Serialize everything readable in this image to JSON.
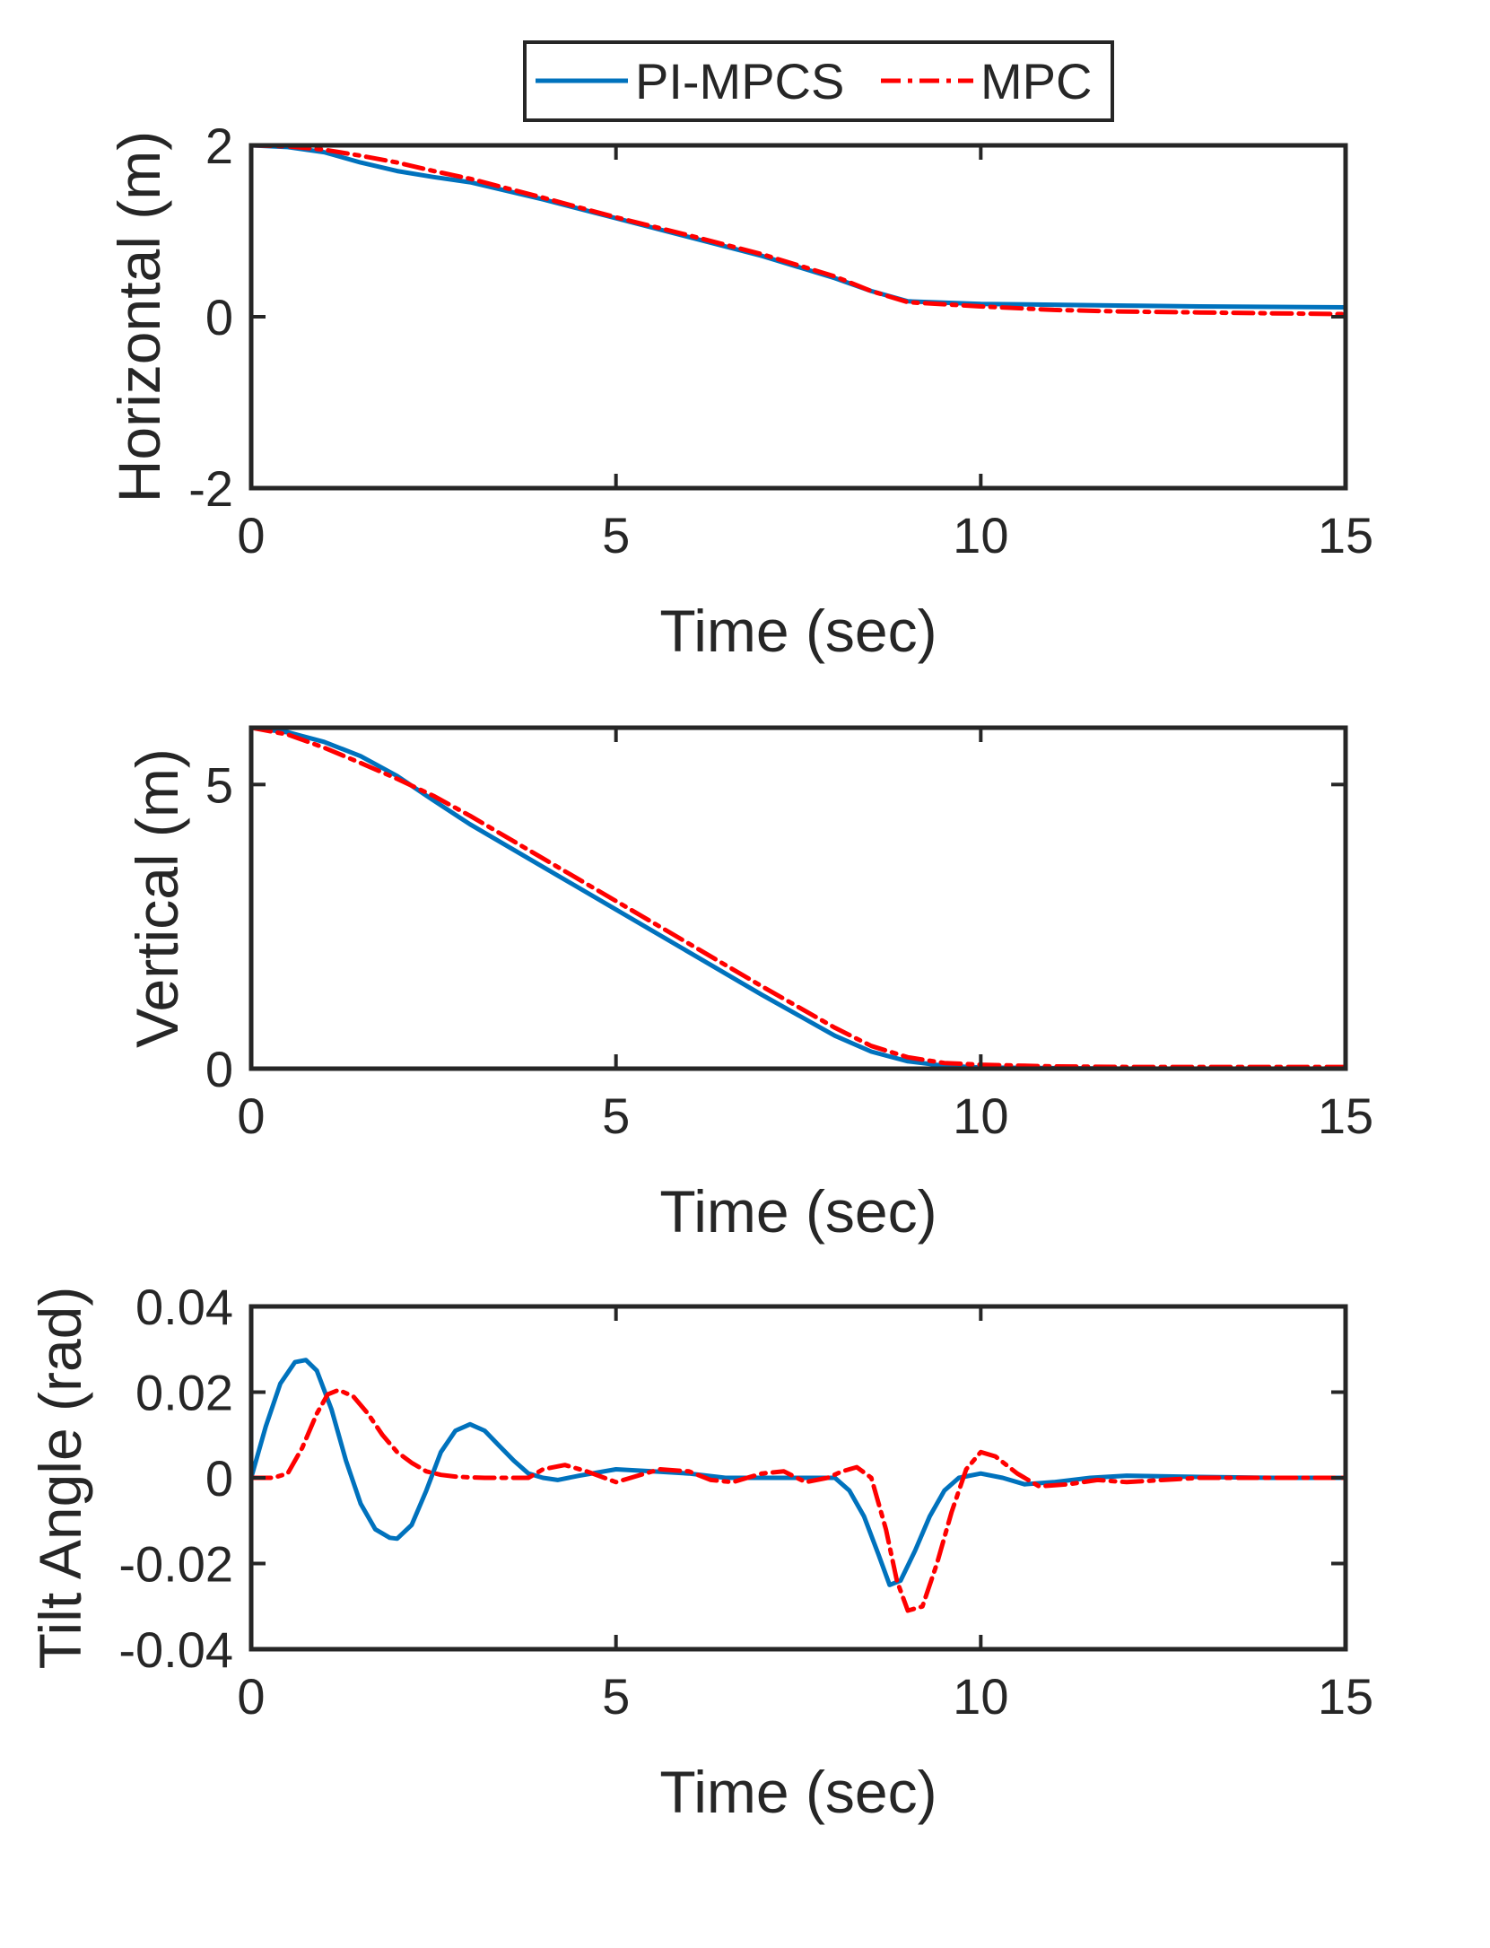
{
  "legend": {
    "entries": [
      {
        "label": "PI-MPCS",
        "color": "#0072BD",
        "style": "solid"
      },
      {
        "label": "MPC",
        "color": "#FF0000",
        "style": "dash-dot"
      }
    ]
  },
  "chart_data": [
    {
      "type": "line",
      "xlabel": "Time (sec)",
      "ylabel": "Horizontal (m)",
      "xlim": [
        0,
        15
      ],
      "ylim": [
        -2,
        2
      ],
      "xticks": [
        0,
        5,
        10,
        15
      ],
      "yticks": [
        -2,
        0,
        2
      ],
      "xtick_labels": [
        "0",
        "5",
        "10",
        "15"
      ],
      "ytick_labels": [
        "-2",
        "0",
        "2"
      ],
      "series": [
        {
          "name": "PI-MPCS",
          "color": "#0072BD",
          "style": "solid",
          "x": [
            0,
            0.5,
            1,
            1.5,
            2,
            2.5,
            3,
            4,
            5,
            6,
            7,
            8,
            8.5,
            9,
            10,
            11,
            12,
            13,
            14,
            15
          ],
          "y": [
            2.0,
            1.98,
            1.92,
            1.8,
            1.7,
            1.63,
            1.57,
            1.37,
            1.15,
            0.93,
            0.71,
            0.45,
            0.3,
            0.18,
            0.15,
            0.14,
            0.13,
            0.12,
            0.115,
            0.11
          ]
        },
        {
          "name": "MPC",
          "color": "#FF0000",
          "style": "dash-dot",
          "x": [
            0,
            0.5,
            1,
            1.5,
            2,
            2.5,
            3,
            4,
            5,
            6,
            7,
            8,
            8.5,
            9,
            10,
            11,
            12,
            13,
            14,
            15
          ],
          "y": [
            2.0,
            1.99,
            1.95,
            1.88,
            1.8,
            1.7,
            1.61,
            1.39,
            1.16,
            0.95,
            0.73,
            0.47,
            0.3,
            0.17,
            0.12,
            0.08,
            0.06,
            0.05,
            0.04,
            0.03
          ]
        }
      ]
    },
    {
      "type": "line",
      "xlabel": "Time (sec)",
      "ylabel": "Vertical (m)",
      "xlim": [
        0,
        15
      ],
      "ylim": [
        0,
        6
      ],
      "xticks": [
        0,
        5,
        10,
        15
      ],
      "yticks": [
        0,
        5
      ],
      "xtick_labels": [
        "0",
        "5",
        "10",
        "15"
      ],
      "ytick_labels": [
        "0",
        "5"
      ],
      "series": [
        {
          "name": "PI-MPCS",
          "color": "#0072BD",
          "style": "solid",
          "x": [
            0,
            0.5,
            1,
            1.5,
            2,
            2.5,
            3,
            4,
            5,
            6,
            7,
            8,
            8.5,
            9,
            9.5,
            10,
            11,
            12,
            13,
            14,
            15
          ],
          "y": [
            6.0,
            5.92,
            5.75,
            5.5,
            5.15,
            4.72,
            4.3,
            3.55,
            2.8,
            2.05,
            1.3,
            0.58,
            0.3,
            0.13,
            0.05,
            0.02,
            0.01,
            0.0,
            0.0,
            0.0,
            0.0
          ]
        },
        {
          "name": "MPC",
          "color": "#FF0000",
          "style": "dash-dot",
          "x": [
            0,
            0.5,
            1,
            1.5,
            2,
            2.5,
            3,
            4,
            5,
            6,
            7,
            8,
            8.5,
            9,
            9.5,
            10,
            11,
            12,
            13,
            14,
            15
          ],
          "y": [
            6.0,
            5.88,
            5.65,
            5.38,
            5.1,
            4.8,
            4.45,
            3.7,
            2.95,
            2.2,
            1.45,
            0.72,
            0.4,
            0.2,
            0.1,
            0.07,
            0.04,
            0.03,
            0.03,
            0.03,
            0.03
          ]
        }
      ]
    },
    {
      "type": "line",
      "xlabel": "Time (sec)",
      "ylabel": "Tilt Angle (rad)",
      "xlim": [
        0,
        15
      ],
      "ylim": [
        -0.04,
        0.04
      ],
      "xticks": [
        0,
        5,
        10,
        15
      ],
      "yticks": [
        -0.04,
        -0.02,
        0,
        0.02,
        0.04
      ],
      "xtick_labels": [
        "0",
        "5",
        "10",
        "15"
      ],
      "ytick_labels": [
        "-0.04",
        "-0.02",
        "0",
        "0.02",
        "0.04"
      ],
      "series": [
        {
          "name": "PI-MPCS",
          "color": "#0072BD",
          "style": "solid",
          "x": [
            0,
            0.2,
            0.4,
            0.6,
            0.75,
            0.9,
            1.1,
            1.3,
            1.5,
            1.7,
            1.9,
            2.0,
            2.2,
            2.4,
            2.6,
            2.8,
            3.0,
            3.2,
            3.4,
            3.6,
            3.8,
            4.0,
            4.2,
            4.5,
            5.0,
            5.5,
            6.0,
            6.5,
            7.0,
            7.5,
            8.0,
            8.2,
            8.4,
            8.6,
            8.75,
            8.9,
            9.1,
            9.3,
            9.5,
            9.7,
            10.0,
            10.3,
            10.6,
            11.0,
            11.5,
            12.0,
            13.0,
            14.0,
            15.0
          ],
          "y": [
            0,
            0.012,
            0.022,
            0.027,
            0.0275,
            0.025,
            0.016,
            0.004,
            -0.006,
            -0.012,
            -0.014,
            -0.0142,
            -0.011,
            -0.003,
            0.006,
            0.011,
            0.0125,
            0.011,
            0.0075,
            0.004,
            0.001,
            0.0,
            -0.0005,
            0.0005,
            0.002,
            0.0015,
            0.001,
            0.0,
            0.0,
            0.0,
            0.0,
            -0.003,
            -0.009,
            -0.018,
            -0.025,
            -0.024,
            -0.017,
            -0.009,
            -0.003,
            0.0,
            0.001,
            0.0,
            -0.0015,
            -0.001,
            0.0,
            0.0005,
            0.0002,
            0.0,
            0.0
          ]
        },
        {
          "name": "MPC",
          "color": "#FF0000",
          "style": "dash-dot",
          "x": [
            0,
            0.3,
            0.5,
            0.7,
            0.9,
            1.05,
            1.2,
            1.4,
            1.6,
            1.8,
            2.0,
            2.2,
            2.4,
            2.6,
            2.8,
            3.0,
            3.2,
            3.5,
            3.8,
            4.0,
            4.3,
            4.6,
            5.0,
            5.3,
            5.6,
            6.0,
            6.3,
            6.6,
            7.0,
            7.3,
            7.6,
            7.9,
            8.1,
            8.3,
            8.5,
            8.7,
            8.85,
            9.0,
            9.2,
            9.4,
            9.6,
            9.8,
            10.0,
            10.2,
            10.5,
            10.8,
            11.2,
            11.6,
            12.0,
            12.5,
            13.0,
            14.0,
            15.0
          ],
          "y": [
            0,
            0.0,
            0.001,
            0.007,
            0.015,
            0.0195,
            0.0205,
            0.019,
            0.015,
            0.01,
            0.006,
            0.0035,
            0.0015,
            0.0007,
            0.0003,
            0.0001,
            0.0,
            0.0,
            0.0,
            0.002,
            0.003,
            0.0015,
            -0.001,
            0.0005,
            0.002,
            0.0015,
            -0.0005,
            -0.001,
            0.001,
            0.0015,
            -0.001,
            0.0,
            0.0015,
            0.0025,
            0.0,
            -0.012,
            -0.024,
            -0.031,
            -0.03,
            -0.02,
            -0.008,
            0.002,
            0.006,
            0.005,
            0.001,
            -0.002,
            -0.0015,
            -0.0005,
            -0.001,
            -0.0005,
            0.0,
            0.0,
            0.0
          ]
        }
      ]
    }
  ]
}
